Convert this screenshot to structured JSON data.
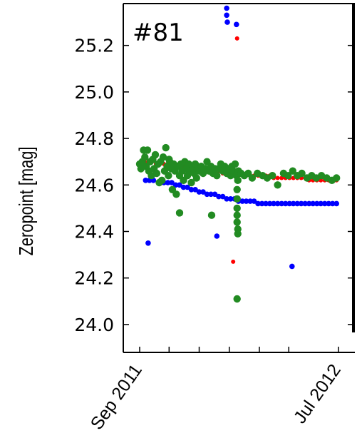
{
  "chart_data": {
    "type": "scatter",
    "title": "",
    "panel_label": "#81",
    "xlabel": "",
    "ylabel": "Zeropoint [mag]",
    "x_ticks": [
      "Sep 2011",
      "Jul 2012"
    ],
    "y_ticks": [
      "24.0",
      "24.2",
      "24.4",
      "24.6",
      "24.8",
      "25.0",
      "25.2"
    ],
    "x_range": [
      "2011-09-01",
      "2012-07-01"
    ],
    "ylim": [
      23.88,
      25.38
    ],
    "grid": false,
    "colors": {
      "red": "#ff0000",
      "blue": "#0000ff",
      "green": "#228b22"
    },
    "series": [
      {
        "color": "red",
        "points": [
          [
            "2011-09-08",
            24.7
          ],
          [
            "2011-09-14",
            24.7
          ],
          [
            "2011-09-20",
            24.7
          ],
          [
            "2011-09-26",
            24.69
          ],
          [
            "2011-10-02",
            24.69
          ],
          [
            "2011-10-08",
            24.69
          ],
          [
            "2011-10-14",
            24.69
          ],
          [
            "2011-10-20",
            24.68
          ],
          [
            "2011-10-26",
            24.68
          ],
          [
            "2011-11-01",
            24.68
          ],
          [
            "2011-11-07",
            24.68
          ],
          [
            "2011-11-13",
            24.68
          ],
          [
            "2011-11-19",
            24.67
          ],
          [
            "2011-11-25",
            24.67
          ],
          [
            "2011-12-01",
            24.67
          ],
          [
            "2011-12-07",
            24.67
          ],
          [
            "2011-12-13",
            24.66
          ],
          [
            "2011-12-19",
            24.66
          ],
          [
            "2011-12-25",
            24.66
          ],
          [
            "2011-12-31",
            24.66
          ],
          [
            "2012-01-06",
            24.65
          ],
          [
            "2012-01-12",
            24.65
          ],
          [
            "2012-01-18",
            24.65
          ],
          [
            "2012-01-24",
            24.64
          ],
          [
            "2012-01-28",
            25.23
          ],
          [
            "2012-01-30",
            24.64
          ],
          [
            "2012-02-05",
            24.64
          ],
          [
            "2012-02-11",
            24.64
          ],
          [
            "2012-02-17",
            24.64
          ],
          [
            "2012-02-23",
            24.64
          ],
          [
            "2012-02-29",
            24.64
          ],
          [
            "2012-03-06",
            24.64
          ],
          [
            "2012-03-12",
            24.64
          ],
          [
            "2012-03-18",
            24.64
          ],
          [
            "2012-03-24",
            24.63
          ],
          [
            "2012-03-30",
            24.63
          ],
          [
            "2012-04-05",
            24.63
          ],
          [
            "2012-04-11",
            24.63
          ],
          [
            "2012-04-17",
            24.63
          ],
          [
            "2012-04-23",
            24.63
          ],
          [
            "2012-04-29",
            24.63
          ],
          [
            "2012-05-05",
            24.63
          ],
          [
            "2012-05-11",
            24.63
          ],
          [
            "2012-05-17",
            24.62
          ],
          [
            "2012-05-23",
            24.62
          ],
          [
            "2012-05-29",
            24.62
          ],
          [
            "2012-06-04",
            24.62
          ],
          [
            "2012-06-10",
            24.62
          ],
          [
            "2012-06-16",
            24.62
          ],
          [
            "2012-06-22",
            24.62
          ],
          [
            "2012-06-28",
            24.62
          ],
          [
            "2012-01-22",
            24.27
          ]
        ]
      },
      {
        "color": "blue",
        "points": [
          [
            "2011-09-10",
            24.62
          ],
          [
            "2011-09-16",
            24.62
          ],
          [
            "2011-09-22",
            24.62
          ],
          [
            "2011-10-08",
            24.61
          ],
          [
            "2011-10-14",
            24.61
          ],
          [
            "2011-10-20",
            24.61
          ],
          [
            "2011-10-26",
            24.6
          ],
          [
            "2011-11-01",
            24.6
          ],
          [
            "2011-11-07",
            24.59
          ],
          [
            "2011-11-13",
            24.59
          ],
          [
            "2011-11-19",
            24.58
          ],
          [
            "2011-11-25",
            24.58
          ],
          [
            "2011-12-01",
            24.57
          ],
          [
            "2011-12-07",
            24.57
          ],
          [
            "2011-12-13",
            24.56
          ],
          [
            "2011-12-19",
            24.56
          ],
          [
            "2011-12-25",
            24.56
          ],
          [
            "2011-12-31",
            24.55
          ],
          [
            "2012-01-06",
            24.55
          ],
          [
            "2012-01-12",
            24.54
          ],
          [
            "2012-01-18",
            24.54
          ],
          [
            "2012-01-24",
            24.54
          ],
          [
            "2012-01-30",
            24.53
          ],
          [
            "2012-02-05",
            24.53
          ],
          [
            "2012-02-11",
            24.53
          ],
          [
            "2012-02-17",
            24.53
          ],
          [
            "2012-02-23",
            24.53
          ],
          [
            "2012-02-29",
            24.52
          ],
          [
            "2012-03-06",
            24.52
          ],
          [
            "2012-03-12",
            24.52
          ],
          [
            "2012-03-18",
            24.52
          ],
          [
            "2012-03-24",
            24.52
          ],
          [
            "2012-03-30",
            24.52
          ],
          [
            "2012-04-05",
            24.52
          ],
          [
            "2012-04-11",
            24.52
          ],
          [
            "2012-04-17",
            24.52
          ],
          [
            "2012-04-23",
            24.52
          ],
          [
            "2012-04-29",
            24.52
          ],
          [
            "2012-05-05",
            24.52
          ],
          [
            "2012-05-11",
            24.52
          ],
          [
            "2012-05-17",
            24.52
          ],
          [
            "2012-05-23",
            24.52
          ],
          [
            "2012-05-29",
            24.52
          ],
          [
            "2012-06-04",
            24.52
          ],
          [
            "2012-06-10",
            24.52
          ],
          [
            "2012-06-16",
            24.52
          ],
          [
            "2012-06-22",
            24.52
          ],
          [
            "2012-06-28",
            24.52
          ],
          [
            "2011-09-14",
            24.35
          ],
          [
            "2011-12-28",
            24.38
          ],
          [
            "2012-01-12",
            25.36
          ],
          [
            "2012-01-12",
            25.33
          ],
          [
            "2012-01-13",
            25.3
          ],
          [
            "2012-01-27",
            25.29
          ],
          [
            "2012-04-21",
            24.25
          ]
        ]
      },
      {
        "color": "green",
        "points": [
          [
            "2011-09-01",
            24.69
          ],
          [
            "2011-09-03",
            24.67
          ],
          [
            "2011-09-05",
            24.7
          ],
          [
            "2011-09-07",
            24.75
          ],
          [
            "2011-09-09",
            24.72
          ],
          [
            "2011-09-11",
            24.68
          ],
          [
            "2011-09-13",
            24.75
          ],
          [
            "2011-09-15",
            24.66
          ],
          [
            "2011-09-17",
            24.7
          ],
          [
            "2011-09-19",
            24.64
          ],
          [
            "2011-09-21",
            24.71
          ],
          [
            "2011-09-23",
            24.67
          ],
          [
            "2011-09-25",
            24.73
          ],
          [
            "2011-09-27",
            24.65
          ],
          [
            "2011-09-29",
            24.69
          ],
          [
            "2011-10-01",
            24.61
          ],
          [
            "2011-10-03",
            24.7
          ],
          [
            "2011-10-05",
            24.62
          ],
          [
            "2011-10-07",
            24.72
          ],
          [
            "2011-10-09",
            24.66
          ],
          [
            "2011-10-11",
            24.76
          ],
          [
            "2011-10-13",
            24.68
          ],
          [
            "2011-10-15",
            24.64
          ],
          [
            "2011-10-17",
            24.7
          ],
          [
            "2011-10-19",
            24.67
          ],
          [
            "2011-10-21",
            24.58
          ],
          [
            "2011-10-23",
            24.69
          ],
          [
            "2011-10-25",
            24.66
          ],
          [
            "2011-10-27",
            24.56
          ],
          [
            "2011-10-29",
            24.68
          ],
          [
            "2011-11-01",
            24.64
          ],
          [
            "2011-11-03",
            24.69
          ],
          [
            "2011-11-05",
            24.66
          ],
          [
            "2011-11-07",
            24.62
          ],
          [
            "2011-11-09",
            24.7
          ],
          [
            "2011-11-11",
            24.67
          ],
          [
            "2011-11-13",
            24.64
          ],
          [
            "2011-11-15",
            24.69
          ],
          [
            "2011-11-17",
            24.66
          ],
          [
            "2011-11-19",
            24.61
          ],
          [
            "2011-11-21",
            24.67
          ],
          [
            "2011-11-23",
            24.65
          ],
          [
            "2011-11-25",
            24.69
          ],
          [
            "2011-11-27",
            24.63
          ],
          [
            "2011-11-29",
            24.67
          ],
          [
            "2011-12-01",
            24.66
          ],
          [
            "2011-12-04",
            24.68
          ],
          [
            "2011-12-07",
            24.65
          ],
          [
            "2011-12-10",
            24.67
          ],
          [
            "2011-12-13",
            24.7
          ],
          [
            "2011-12-16",
            24.66
          ],
          [
            "2011-12-19",
            24.68
          ],
          [
            "2011-12-22",
            24.65
          ],
          [
            "2011-12-25",
            24.67
          ],
          [
            "2011-12-28",
            24.64
          ],
          [
            "2011-12-31",
            24.67
          ],
          [
            "2012-01-03",
            24.69
          ],
          [
            "2012-01-06",
            24.66
          ],
          [
            "2012-01-09",
            24.68
          ],
          [
            "2012-01-12",
            24.65
          ],
          [
            "2012-01-15",
            24.67
          ],
          [
            "2012-01-18",
            24.64
          ],
          [
            "2012-01-20",
            24.68
          ],
          [
            "2012-01-22",
            24.66
          ],
          [
            "2012-01-25",
            24.69
          ],
          [
            "2012-01-27",
            24.64
          ],
          [
            "2012-01-28",
            24.58
          ],
          [
            "2012-01-28",
            24.54
          ],
          [
            "2012-01-28",
            24.5
          ],
          [
            "2012-01-28",
            24.47
          ],
          [
            "2012-01-28",
            24.44
          ],
          [
            "2012-01-29",
            24.41
          ],
          [
            "2012-01-29",
            24.39
          ],
          [
            "2012-01-29",
            24.62
          ],
          [
            "2012-01-30",
            24.66
          ],
          [
            "2012-02-03",
            24.65
          ],
          [
            "2012-02-08",
            24.64
          ],
          [
            "2012-02-14",
            24.65
          ],
          [
            "2012-02-20",
            24.63
          ],
          [
            "2012-02-28",
            24.65
          ],
          [
            "2012-03-07",
            24.64
          ],
          [
            "2012-03-14",
            24.63
          ],
          [
            "2012-03-22",
            24.64
          ],
          [
            "2012-03-30",
            24.6
          ],
          [
            "2012-04-08",
            24.65
          ],
          [
            "2012-04-15",
            24.64
          ],
          [
            "2012-04-22",
            24.66
          ],
          [
            "2012-04-29",
            24.64
          ],
          [
            "2012-05-06",
            24.65
          ],
          [
            "2012-05-14",
            24.63
          ],
          [
            "2012-05-21",
            24.64
          ],
          [
            "2012-05-28",
            24.63
          ],
          [
            "2012-06-05",
            24.64
          ],
          [
            "2012-06-13",
            24.63
          ],
          [
            "2012-06-21",
            24.62
          ],
          [
            "2012-06-28",
            24.63
          ],
          [
            "2011-11-01",
            24.48
          ],
          [
            "2011-12-20",
            24.47
          ],
          [
            "2012-01-28",
            24.11
          ],
          [
            "2011-10-16",
            24.71
          ]
        ]
      }
    ]
  }
}
